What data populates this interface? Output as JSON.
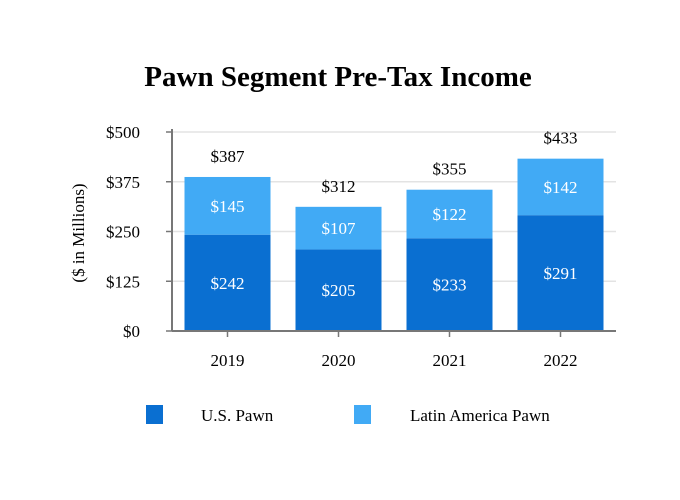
{
  "chart_data": {
    "type": "bar",
    "stacked": true,
    "title": "Pawn Segment Pre-Tax Income",
    "xlabel": "",
    "ylabel": "($ in Millions)",
    "categories": [
      "2019",
      "2020",
      "2021",
      "2022"
    ],
    "series": [
      {
        "name": "U.S. Pawn",
        "color": "#0a6fd1",
        "values": [
          242,
          205,
          233,
          291
        ],
        "labels": [
          "$242",
          "$205",
          "$233",
          "$291"
        ]
      },
      {
        "name": "Latin America Pawn",
        "color": "#41aaf5",
        "values": [
          145,
          107,
          122,
          142
        ],
        "labels": [
          "$145",
          "$107",
          "$122",
          "$142"
        ]
      }
    ],
    "totals": [
      387,
      312,
      355,
      433
    ],
    "total_labels": [
      "$387",
      "$312",
      "$355",
      "$433"
    ],
    "ylim": [
      0,
      500
    ],
    "yticks": [
      0,
      125,
      250,
      375,
      500
    ],
    "ytick_labels": [
      "$0",
      "$125",
      "$250",
      "$375",
      "$500"
    ],
    "grid": true,
    "legend_position": "bottom"
  }
}
